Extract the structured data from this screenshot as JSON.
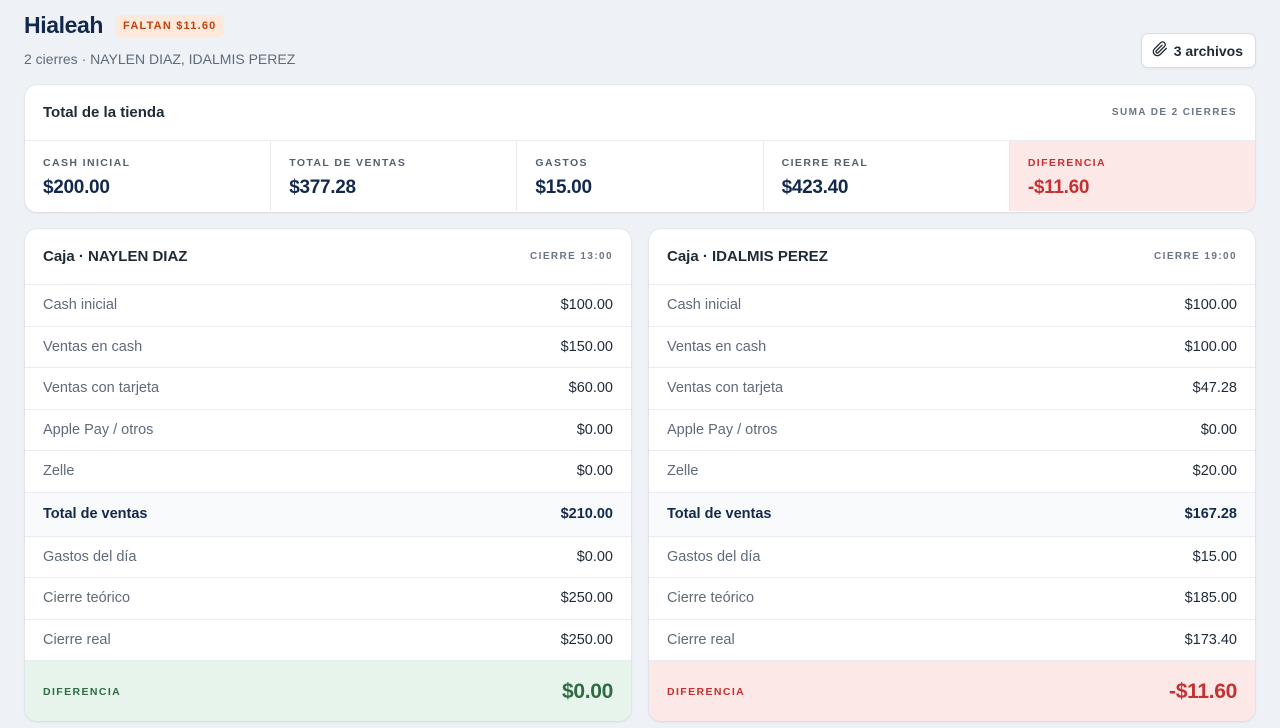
{
  "header": {
    "title": "Hialeah",
    "badge": "FALTAN $11.60",
    "subtitle": "2 cierres · NAYLEN DIAZ, IDALMIS PEREZ",
    "files_button": "3 archivos"
  },
  "totals": {
    "title": "Total de la tienda",
    "meta": "SUMA DE 2 CIERRES",
    "stats": [
      {
        "label": "CASH INICIAL",
        "value": "$200.00"
      },
      {
        "label": "TOTAL DE VENTAS",
        "value": "$377.28"
      },
      {
        "label": "GASTOS",
        "value": "$15.00"
      },
      {
        "label": "CIERRE REAL",
        "value": "$423.40"
      },
      {
        "label": "DIFERENCIA",
        "value": "-$11.60"
      }
    ]
  },
  "cajas": [
    {
      "title": "Caja · NAYLEN DIAZ",
      "meta": "CIERRE 13:00",
      "rows": [
        {
          "label": "Cash inicial",
          "value": "$100.00"
        },
        {
          "label": "Ventas en cash",
          "value": "$150.00"
        },
        {
          "label": "Ventas con tarjeta",
          "value": "$60.00"
        },
        {
          "label": "Apple Pay / otros",
          "value": "$0.00"
        },
        {
          "label": "Zelle",
          "value": "$0.00"
        },
        {
          "label": "Total de ventas",
          "value": "$210.00"
        },
        {
          "label": "Gastos del día",
          "value": "$0.00"
        },
        {
          "label": "Cierre teórico",
          "value": "$250.00"
        },
        {
          "label": "Cierre real",
          "value": "$250.00"
        }
      ],
      "diff_label": "DIFERENCIA",
      "diff_value": "$0.00"
    },
    {
      "title": "Caja · IDALMIS PEREZ",
      "meta": "CIERRE 19:00",
      "rows": [
        {
          "label": "Cash inicial",
          "value": "$100.00"
        },
        {
          "label": "Ventas en cash",
          "value": "$100.00"
        },
        {
          "label": "Ventas con tarjeta",
          "value": "$47.28"
        },
        {
          "label": "Apple Pay / otros",
          "value": "$0.00"
        },
        {
          "label": "Zelle",
          "value": "$20.00"
        },
        {
          "label": "Total de ventas",
          "value": "$167.28"
        },
        {
          "label": "Gastos del día",
          "value": "$15.00"
        },
        {
          "label": "Cierre teórico",
          "value": "$185.00"
        },
        {
          "label": "Cierre real",
          "value": "$173.40"
        }
      ],
      "diff_label": "DIFERENCIA",
      "diff_value": "-$11.60"
    }
  ],
  "colors": {
    "background": "#eef2f6",
    "negative": "#c53030",
    "positive": "#2f6b45",
    "badge_bg": "#fde8dc",
    "badge_text": "#c2410c"
  },
  "icons": {
    "files_button": "paperclip-icon"
  }
}
